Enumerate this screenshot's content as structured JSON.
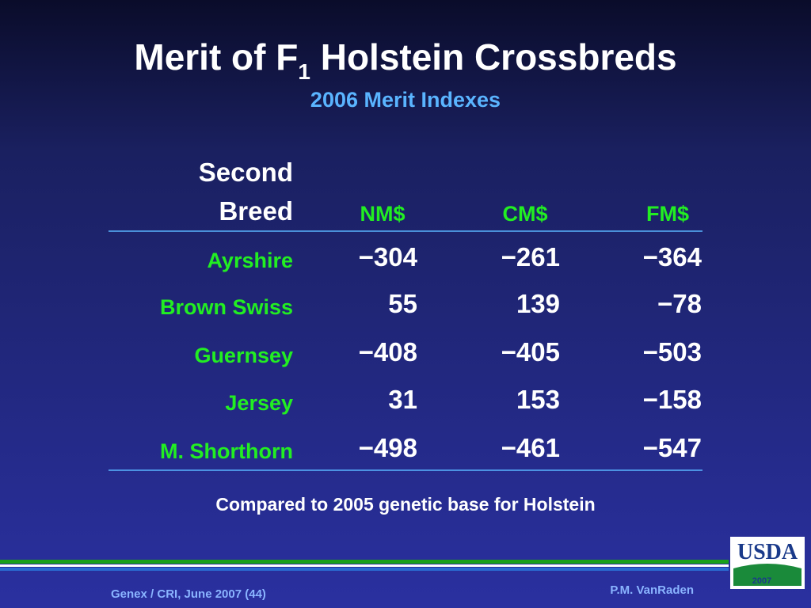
{
  "header": {
    "title": {
      "main": "Merit of F",
      "subscript": "1",
      "rest": "Holstein Crossbreds"
    },
    "subtitle": "2006 Merit Indexes"
  },
  "table": {
    "corner": [
      "Second",
      "Breed"
    ],
    "columns": [
      "NM$",
      "CM$",
      "FM$"
    ],
    "rows": [
      {
        "breed": "Ayrshire",
        "values": [
          "−304",
          "−261",
          "−364"
        ]
      },
      {
        "breed": "Brown Swiss",
        "values": [
          "55",
          "139",
          "−78"
        ]
      },
      {
        "breed": "Guernsey",
        "values": [
          "−408",
          "−405",
          "−503"
        ]
      },
      {
        "breed": "Jersey",
        "values": [
          "31",
          "153",
          "−158"
        ]
      },
      {
        "breed": "M. Shorthorn",
        "values": [
          "−498",
          "−461",
          "−547"
        ]
      }
    ]
  },
  "note": "Compared to 2005 genetic base for Holstein",
  "footer": {
    "left": "Genex / CRI, June 2007 (44)",
    "right": "P.M. VanRaden",
    "logo": "USDA",
    "logo_year": "2007"
  }
}
